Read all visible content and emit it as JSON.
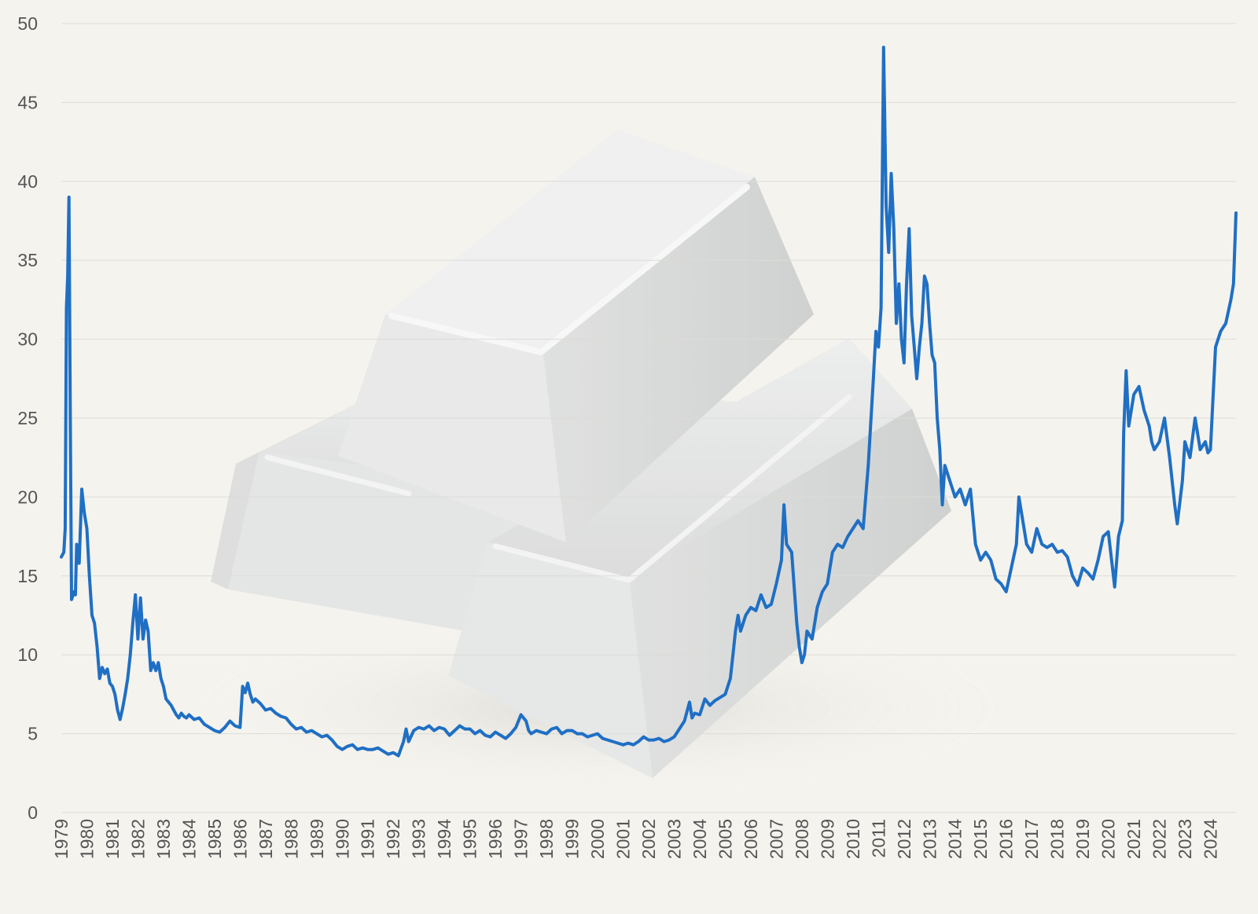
{
  "chart_data": {
    "type": "line",
    "title": "",
    "xlabel": "",
    "ylabel": "",
    "ylim": [
      0,
      50
    ],
    "yticks": [
      0,
      5,
      10,
      15,
      20,
      25,
      30,
      35,
      40,
      45,
      50
    ],
    "xlim": [
      1979.0,
      2025.0
    ],
    "xticks": [
      1979,
      1980,
      1981,
      1982,
      1983,
      1984,
      1985,
      1986,
      1987,
      1988,
      1989,
      1990,
      1991,
      1992,
      1993,
      1994,
      1995,
      1996,
      1997,
      1998,
      1999,
      2000,
      2001,
      2002,
      2003,
      2004,
      2005,
      2006,
      2007,
      2008,
      2009,
      2010,
      2011,
      2012,
      2013,
      2014,
      2015,
      2016,
      2017,
      2018,
      2019,
      2020,
      2021,
      2022,
      2023,
      2024
    ],
    "grid": true,
    "legend": "none",
    "line_color": "#1f6fc4",
    "background_color": "#f5f3ee",
    "background_image": "silver-bars-illustration",
    "series": [
      {
        "values": [
          [
            1979.0,
            16.2
          ],
          [
            1979.1,
            16.5
          ],
          [
            1979.15,
            18.0
          ],
          [
            1979.2,
            32.0
          ],
          [
            1979.25,
            34.0
          ],
          [
            1979.3,
            39.0
          ],
          [
            1979.35,
            25.0
          ],
          [
            1979.4,
            13.5
          ],
          [
            1979.5,
            14.0
          ],
          [
            1979.55,
            13.8
          ],
          [
            1979.6,
            17.0
          ],
          [
            1979.7,
            15.8
          ],
          [
            1979.8,
            20.5
          ],
          [
            1979.9,
            19.0
          ],
          [
            1980.0,
            18.0
          ],
          [
            1980.1,
            15.0
          ],
          [
            1980.2,
            12.5
          ],
          [
            1980.3,
            12.0
          ],
          [
            1980.4,
            10.5
          ],
          [
            1980.5,
            8.5
          ],
          [
            1980.6,
            9.2
          ],
          [
            1980.7,
            8.8
          ],
          [
            1980.8,
            9.1
          ],
          [
            1980.9,
            8.2
          ],
          [
            1981.0,
            8.0
          ],
          [
            1981.1,
            7.5
          ],
          [
            1981.2,
            6.5
          ],
          [
            1981.3,
            5.9
          ],
          [
            1981.4,
            6.6
          ],
          [
            1981.5,
            7.5
          ],
          [
            1981.6,
            8.5
          ],
          [
            1981.7,
            10.0
          ],
          [
            1981.8,
            12.0
          ],
          [
            1981.9,
            13.8
          ],
          [
            1982.0,
            11.0
          ],
          [
            1982.1,
            13.6
          ],
          [
            1982.2,
            11.0
          ],
          [
            1982.3,
            12.2
          ],
          [
            1982.4,
            11.5
          ],
          [
            1982.5,
            9.0
          ],
          [
            1982.6,
            9.5
          ],
          [
            1982.7,
            9.0
          ],
          [
            1982.8,
            9.5
          ],
          [
            1982.9,
            8.5
          ],
          [
            1983.0,
            8.0
          ],
          [
            1983.1,
            7.2
          ],
          [
            1983.2,
            7.0
          ],
          [
            1983.3,
            6.8
          ],
          [
            1983.4,
            6.5
          ],
          [
            1983.5,
            6.2
          ],
          [
            1983.6,
            6.0
          ],
          [
            1983.7,
            6.3
          ],
          [
            1983.8,
            6.1
          ],
          [
            1983.9,
            6.0
          ],
          [
            1984.0,
            6.2
          ],
          [
            1984.2,
            5.9
          ],
          [
            1984.4,
            6.0
          ],
          [
            1984.6,
            5.6
          ],
          [
            1984.8,
            5.4
          ],
          [
            1985.0,
            5.2
          ],
          [
            1985.2,
            5.1
          ],
          [
            1985.4,
            5.4
          ],
          [
            1985.6,
            5.8
          ],
          [
            1985.8,
            5.5
          ],
          [
            1986.0,
            5.4
          ],
          [
            1986.1,
            8.0
          ],
          [
            1986.2,
            7.6
          ],
          [
            1986.3,
            8.2
          ],
          [
            1986.4,
            7.5
          ],
          [
            1986.5,
            7.0
          ],
          [
            1986.6,
            7.2
          ],
          [
            1986.8,
            6.9
          ],
          [
            1987.0,
            6.5
          ],
          [
            1987.2,
            6.6
          ],
          [
            1987.4,
            6.3
          ],
          [
            1987.6,
            6.1
          ],
          [
            1987.8,
            6.0
          ],
          [
            1988.0,
            5.6
          ],
          [
            1988.2,
            5.3
          ],
          [
            1988.4,
            5.4
          ],
          [
            1988.6,
            5.1
          ],
          [
            1988.8,
            5.2
          ],
          [
            1989.0,
            5.0
          ],
          [
            1989.2,
            4.8
          ],
          [
            1989.4,
            4.9
          ],
          [
            1989.6,
            4.6
          ],
          [
            1989.8,
            4.2
          ],
          [
            1990.0,
            4.0
          ],
          [
            1990.2,
            4.2
          ],
          [
            1990.4,
            4.3
          ],
          [
            1990.6,
            4.0
          ],
          [
            1990.8,
            4.1
          ],
          [
            1991.0,
            4.0
          ],
          [
            1991.2,
            4.0
          ],
          [
            1991.4,
            4.1
          ],
          [
            1991.6,
            3.9
          ],
          [
            1991.8,
            3.7
          ],
          [
            1992.0,
            3.8
          ],
          [
            1992.2,
            3.6
          ],
          [
            1992.4,
            4.5
          ],
          [
            1992.5,
            5.3
          ],
          [
            1992.6,
            4.5
          ],
          [
            1992.8,
            5.2
          ],
          [
            1993.0,
            5.4
          ],
          [
            1993.2,
            5.3
          ],
          [
            1993.4,
            5.5
          ],
          [
            1993.6,
            5.2
          ],
          [
            1993.8,
            5.4
          ],
          [
            1994.0,
            5.3
          ],
          [
            1994.2,
            4.9
          ],
          [
            1994.4,
            5.2
          ],
          [
            1994.6,
            5.5
          ],
          [
            1994.8,
            5.3
          ],
          [
            1995.0,
            5.3
          ],
          [
            1995.2,
            5.0
          ],
          [
            1995.4,
            5.2
          ],
          [
            1995.6,
            4.9
          ],
          [
            1995.8,
            4.8
          ],
          [
            1996.0,
            5.1
          ],
          [
            1996.2,
            4.9
          ],
          [
            1996.4,
            4.7
          ],
          [
            1996.6,
            5.0
          ],
          [
            1996.8,
            5.4
          ],
          [
            1997.0,
            6.2
          ],
          [
            1997.2,
            5.8
          ],
          [
            1997.3,
            5.2
          ],
          [
            1997.4,
            5.0
          ],
          [
            1997.6,
            5.2
          ],
          [
            1997.8,
            5.1
          ],
          [
            1998.0,
            5.0
          ],
          [
            1998.2,
            5.3
          ],
          [
            1998.4,
            5.4
          ],
          [
            1998.6,
            5.0
          ],
          [
            1998.8,
            5.2
          ],
          [
            1999.0,
            5.2
          ],
          [
            1999.2,
            5.0
          ],
          [
            1999.4,
            5.0
          ],
          [
            1999.6,
            4.8
          ],
          [
            1999.8,
            4.9
          ],
          [
            2000.0,
            5.0
          ],
          [
            2000.2,
            4.7
          ],
          [
            2000.4,
            4.6
          ],
          [
            2000.6,
            4.5
          ],
          [
            2000.8,
            4.4
          ],
          [
            2001.0,
            4.3
          ],
          [
            2001.2,
            4.4
          ],
          [
            2001.4,
            4.3
          ],
          [
            2001.6,
            4.5
          ],
          [
            2001.8,
            4.8
          ],
          [
            2002.0,
            4.6
          ],
          [
            2002.2,
            4.6
          ],
          [
            2002.4,
            4.7
          ],
          [
            2002.6,
            4.5
          ],
          [
            2002.8,
            4.6
          ],
          [
            2003.0,
            4.8
          ],
          [
            2003.2,
            5.3
          ],
          [
            2003.4,
            5.8
          ],
          [
            2003.6,
            7.0
          ],
          [
            2003.7,
            6.0
          ],
          [
            2003.8,
            6.3
          ],
          [
            2004.0,
            6.2
          ],
          [
            2004.2,
            7.2
          ],
          [
            2004.4,
            6.8
          ],
          [
            2004.6,
            7.1
          ],
          [
            2004.8,
            7.3
          ],
          [
            2005.0,
            7.5
          ],
          [
            2005.2,
            8.5
          ],
          [
            2005.3,
            10.0
          ],
          [
            2005.4,
            11.5
          ],
          [
            2005.5,
            12.5
          ],
          [
            2005.6,
            11.5
          ],
          [
            2005.8,
            12.5
          ],
          [
            2006.0,
            13.0
          ],
          [
            2006.2,
            12.8
          ],
          [
            2006.4,
            13.8
          ],
          [
            2006.6,
            13.0
          ],
          [
            2006.8,
            13.2
          ],
          [
            2007.0,
            14.5
          ],
          [
            2007.2,
            16.0
          ],
          [
            2007.3,
            19.5
          ],
          [
            2007.4,
            17.0
          ],
          [
            2007.6,
            16.5
          ],
          [
            2007.8,
            12.0
          ],
          [
            2007.9,
            10.5
          ],
          [
            2008.0,
            9.5
          ],
          [
            2008.1,
            10.0
          ],
          [
            2008.2,
            11.5
          ],
          [
            2008.4,
            11.0
          ],
          [
            2008.6,
            13.0
          ],
          [
            2008.8,
            14.0
          ],
          [
            2009.0,
            14.5
          ],
          [
            2009.2,
            16.5
          ],
          [
            2009.4,
            17.0
          ],
          [
            2009.6,
            16.8
          ],
          [
            2009.8,
            17.5
          ],
          [
            2010.0,
            18.0
          ],
          [
            2010.2,
            18.5
          ],
          [
            2010.4,
            18.0
          ],
          [
            2010.6,
            22.0
          ],
          [
            2010.8,
            27.5
          ],
          [
            2010.9,
            30.5
          ],
          [
            2011.0,
            29.5
          ],
          [
            2011.1,
            32.0
          ],
          [
            2011.2,
            48.5
          ],
          [
            2011.3,
            38.5
          ],
          [
            2011.4,
            35.5
          ],
          [
            2011.5,
            40.5
          ],
          [
            2011.6,
            37.0
          ],
          [
            2011.7,
            31.0
          ],
          [
            2011.8,
            33.5
          ],
          [
            2011.9,
            30.0
          ],
          [
            2012.0,
            28.5
          ],
          [
            2012.1,
            33.5
          ],
          [
            2012.2,
            37.0
          ],
          [
            2012.3,
            31.5
          ],
          [
            2012.4,
            29.5
          ],
          [
            2012.5,
            27.5
          ],
          [
            2012.6,
            29.5
          ],
          [
            2012.7,
            31.0
          ],
          [
            2012.8,
            34.0
          ],
          [
            2012.9,
            33.5
          ],
          [
            2013.0,
            31.0
          ],
          [
            2013.1,
            29.0
          ],
          [
            2013.2,
            28.5
          ],
          [
            2013.3,
            25.0
          ],
          [
            2013.4,
            23.0
          ],
          [
            2013.5,
            19.5
          ],
          [
            2013.6,
            22.0
          ],
          [
            2013.8,
            21.0
          ],
          [
            2014.0,
            20.0
          ],
          [
            2014.2,
            20.5
          ],
          [
            2014.4,
            19.5
          ],
          [
            2014.6,
            20.5
          ],
          [
            2014.8,
            17.0
          ],
          [
            2015.0,
            16.0
          ],
          [
            2015.2,
            16.5
          ],
          [
            2015.4,
            16.0
          ],
          [
            2015.6,
            14.8
          ],
          [
            2015.8,
            14.5
          ],
          [
            2016.0,
            14.0
          ],
          [
            2016.2,
            15.5
          ],
          [
            2016.4,
            17.0
          ],
          [
            2016.5,
            20.0
          ],
          [
            2016.6,
            19.0
          ],
          [
            2016.8,
            17.0
          ],
          [
            2017.0,
            16.5
          ],
          [
            2017.2,
            18.0
          ],
          [
            2017.4,
            17.0
          ],
          [
            2017.6,
            16.8
          ],
          [
            2017.8,
            17.0
          ],
          [
            2018.0,
            16.5
          ],
          [
            2018.2,
            16.6
          ],
          [
            2018.4,
            16.2
          ],
          [
            2018.6,
            15.0
          ],
          [
            2018.8,
            14.4
          ],
          [
            2019.0,
            15.5
          ],
          [
            2019.2,
            15.2
          ],
          [
            2019.4,
            14.8
          ],
          [
            2019.6,
            16.0
          ],
          [
            2019.8,
            17.5
          ],
          [
            2020.0,
            17.8
          ],
          [
            2020.2,
            15.0
          ],
          [
            2020.25,
            14.3
          ],
          [
            2020.4,
            17.5
          ],
          [
            2020.55,
            18.5
          ],
          [
            2020.6,
            24.0
          ],
          [
            2020.7,
            28.0
          ],
          [
            2020.8,
            24.5
          ],
          [
            2021.0,
            26.5
          ],
          [
            2021.2,
            27.0
          ],
          [
            2021.4,
            25.5
          ],
          [
            2021.6,
            24.5
          ],
          [
            2021.7,
            23.5
          ],
          [
            2021.8,
            23.0
          ],
          [
            2022.0,
            23.5
          ],
          [
            2022.2,
            25.0
          ],
          [
            2022.4,
            22.5
          ],
          [
            2022.6,
            19.5
          ],
          [
            2022.7,
            18.3
          ],
          [
            2022.9,
            21.0
          ],
          [
            2023.0,
            23.5
          ],
          [
            2023.2,
            22.5
          ],
          [
            2023.4,
            25.0
          ],
          [
            2023.6,
            23.0
          ],
          [
            2023.8,
            23.5
          ],
          [
            2023.9,
            22.8
          ],
          [
            2024.0,
            23.0
          ],
          [
            2024.2,
            29.5
          ],
          [
            2024.4,
            30.5
          ],
          [
            2024.6,
            31.0
          ],
          [
            2024.8,
            32.5
          ],
          [
            2024.9,
            33.5
          ],
          [
            2025.0,
            38.0
          ]
        ]
      }
    ]
  }
}
